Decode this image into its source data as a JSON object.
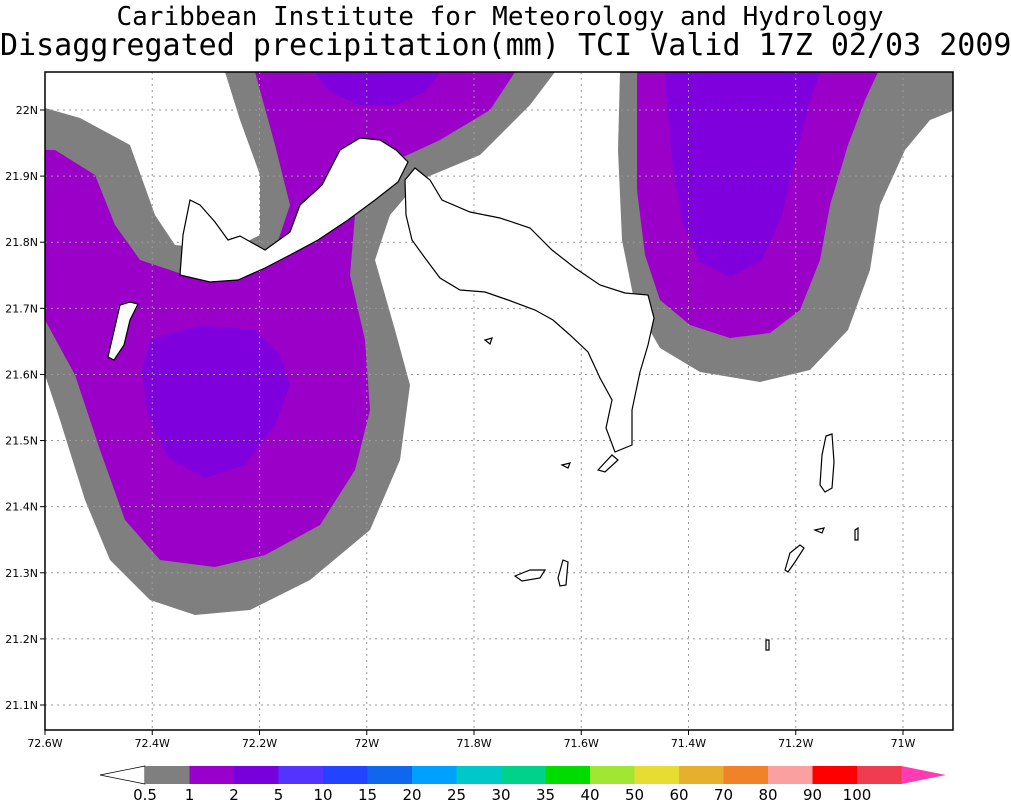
{
  "title": {
    "line1": "Caribbean Institute for Meteorology and Hydrology",
    "line2": "Disaggregated precipitation(mm) TCI Valid 17Z 02/03 2009"
  },
  "map": {
    "x_ticks": [
      {
        "lon": -72.6,
        "label": "72.6W"
      },
      {
        "lon": -72.4,
        "label": "72.4W"
      },
      {
        "lon": -72.2,
        "label": "72.2W"
      },
      {
        "lon": -72.0,
        "label": "72W"
      },
      {
        "lon": -71.8,
        "label": "71.8W"
      },
      {
        "lon": -71.6,
        "label": "71.6W"
      },
      {
        "lon": -71.4,
        "label": "71.4W"
      },
      {
        "lon": -71.2,
        "label": "71.2W"
      },
      {
        "lon": -71.0,
        "label": "71W"
      }
    ],
    "y_ticks": [
      {
        "lat": 22.0,
        "label": "22N"
      },
      {
        "lat": 21.9,
        "label": "21.9N"
      },
      {
        "lat": 21.8,
        "label": "21.8N"
      },
      {
        "lat": 21.7,
        "label": "21.7N"
      },
      {
        "lat": 21.6,
        "label": "21.6N"
      },
      {
        "lat": 21.5,
        "label": "21.5N"
      },
      {
        "lat": 21.4,
        "label": "21.4N"
      },
      {
        "lat": 21.3,
        "label": "21.3N"
      },
      {
        "lat": 21.2,
        "label": "21.2N"
      },
      {
        "lat": 21.1,
        "label": "21.1N"
      }
    ],
    "grid": true,
    "precip_colors": {
      "0.5-1": "#7f7f7f",
      "1-2": "#9b00c8",
      "2-5": "#7f00dc"
    }
  },
  "legend": {
    "colors": [
      "#7f7f7f",
      "#9900cc",
      "#7700dd",
      "#5533ff",
      "#2244ff",
      "#1166ee",
      "#00a0ff",
      "#00c8c8",
      "#00d28c",
      "#00dc00",
      "#a0e632",
      "#e6dc32",
      "#e6af2d",
      "#f08228",
      "#faa0a0",
      "#ff0000",
      "#f03c50",
      "#ff3cb4"
    ],
    "labels": [
      "0.5",
      "1",
      "2",
      "5",
      "10",
      "15",
      "20",
      "25",
      "30",
      "35",
      "40",
      "50",
      "60",
      "70",
      "80",
      "90",
      "100"
    ],
    "low_arrow_color": "#ffffff",
    "high_arrow_color": "#ff3cb4"
  }
}
